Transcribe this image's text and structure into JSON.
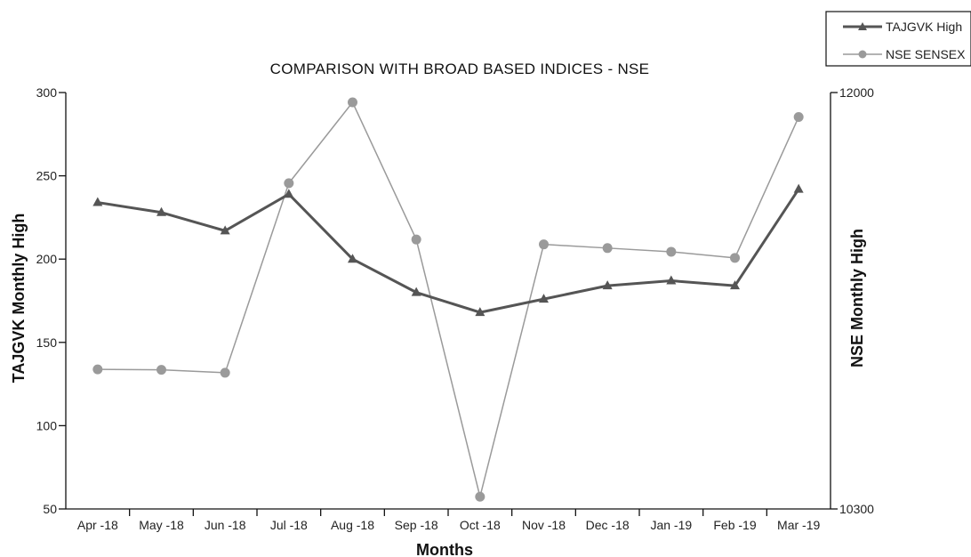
{
  "chart_data": {
    "type": "line",
    "title": "COMPARISON WITH BROAD BASED INDICES - NSE",
    "xlabel": "Months",
    "ylabel": "TAJGVK Monthly High",
    "y2label": "NSE Monthly High",
    "categories": [
      "Apr -18",
      "May -18",
      "Jun -18",
      "Jul -18",
      "Aug -18",
      "Sep -18",
      "Oct -18",
      "Nov -18",
      "Dec -18",
      "Jan -19",
      "Feb -19",
      "Mar -19"
    ],
    "ylim": [
      50,
      300
    ],
    "yticks": [
      "50",
      "100",
      "150",
      "200",
      "250",
      "300"
    ],
    "y2lim": [
      10300,
      12000
    ],
    "y2ticks": [
      "10300",
      "12000"
    ],
    "grid": false,
    "legend_position": "top-right",
    "series": [
      {
        "name": "TAJGVK High",
        "axis": "left",
        "color": "#555555",
        "marker": "triangle",
        "values": [
          234,
          228,
          217,
          239,
          200,
          180,
          168,
          176,
          184,
          187,
          184,
          242
        ]
      },
      {
        "name": "NSE SENSEX",
        "axis": "right",
        "color": "#9a9a9a",
        "marker": "circle",
        "values": [
          10870,
          10868,
          10856,
          11630,
          11960,
          11400,
          10350,
          11380,
          11365,
          11350,
          11325,
          11900
        ]
      }
    ]
  }
}
